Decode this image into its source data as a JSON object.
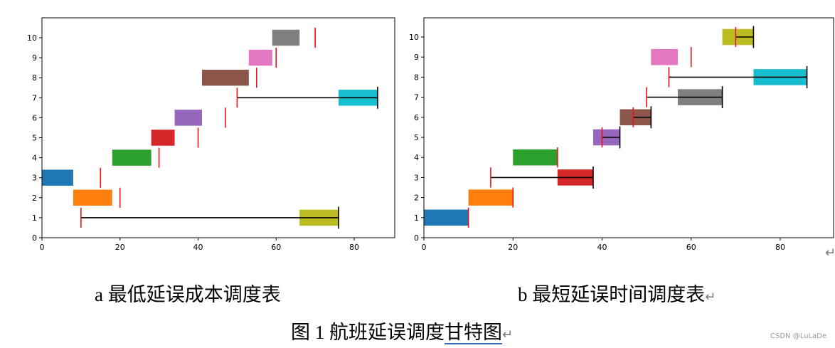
{
  "chart_data": [
    {
      "type": "gantt",
      "caption": "a 最低延误成本调度表",
      "xlim": [
        0,
        90
      ],
      "ylim": [
        0,
        11
      ],
      "x_ticks": [
        "0",
        "20",
        "40",
        "60",
        "80"
      ],
      "y_ticks": [
        "0",
        "1",
        "2",
        "3",
        "4",
        "5",
        "6",
        "7",
        "8",
        "9",
        "10"
      ],
      "bars": [
        {
          "flight": 1,
          "start": 66,
          "end": 76,
          "color": "#bcbd22"
        },
        {
          "flight": 2,
          "start": 8,
          "end": 18,
          "color": "#ff7f0e"
        },
        {
          "flight": 3,
          "start": 0,
          "end": 8,
          "color": "#1f77b4"
        },
        {
          "flight": 4,
          "start": 18,
          "end": 28,
          "color": "#2ca02c"
        },
        {
          "flight": 5,
          "start": 28,
          "end": 34,
          "color": "#d62728"
        },
        {
          "flight": 6,
          "start": 34,
          "end": 41,
          "color": "#9467bd"
        },
        {
          "flight": 7,
          "start": 76,
          "end": 86,
          "color": "#17becf"
        },
        {
          "flight": 8,
          "start": 41,
          "end": 53,
          "color": "#8c564b"
        },
        {
          "flight": 9,
          "start": 53,
          "end": 59,
          "color": "#e377c2"
        },
        {
          "flight": 10,
          "start": 59,
          "end": 66,
          "color": "#7f7f7f"
        }
      ],
      "deadlines": [
        {
          "flight": 1,
          "x": 10
        },
        {
          "flight": 2,
          "x": 20
        },
        {
          "flight": 3,
          "x": 15
        },
        {
          "flight": 4,
          "x": 30
        },
        {
          "flight": 5,
          "x": 40
        },
        {
          "flight": 6,
          "x": 47
        },
        {
          "flight": 7,
          "x": 50
        },
        {
          "flight": 8,
          "x": 55
        },
        {
          "flight": 9,
          "x": 60
        },
        {
          "flight": 10,
          "x": 70
        }
      ],
      "delays": [
        {
          "flight": 1,
          "from": 10,
          "to": 76
        },
        {
          "flight": 7,
          "from": 50,
          "to": 86
        }
      ]
    },
    {
      "type": "gantt",
      "caption": "b 最短延误时间调度表",
      "xlim": [
        0,
        92
      ],
      "ylim": [
        0,
        11
      ],
      "x_ticks": [
        "0",
        "20",
        "40",
        "60",
        "80"
      ],
      "y_ticks": [
        "0",
        "1",
        "2",
        "3",
        "4",
        "5",
        "6",
        "7",
        "8",
        "9",
        "10"
      ],
      "bars": [
        {
          "flight": 1,
          "start": 0,
          "end": 10,
          "color": "#1f77b4"
        },
        {
          "flight": 2,
          "start": 10,
          "end": 20,
          "color": "#ff7f0e"
        },
        {
          "flight": 3,
          "start": 30,
          "end": 38,
          "color": "#d62728"
        },
        {
          "flight": 4,
          "start": 20,
          "end": 30,
          "color": "#2ca02c"
        },
        {
          "flight": 5,
          "start": 38,
          "end": 44,
          "color": "#9467bd"
        },
        {
          "flight": 6,
          "start": 44,
          "end": 51,
          "color": "#8c564b"
        },
        {
          "flight": 7,
          "start": 57,
          "end": 67,
          "color": "#7f7f7f"
        },
        {
          "flight": 8,
          "start": 74,
          "end": 86,
          "color": "#17becf"
        },
        {
          "flight": 9,
          "start": 51,
          "end": 57,
          "color": "#e377c2"
        },
        {
          "flight": 10,
          "start": 67,
          "end": 74,
          "color": "#bcbd22"
        }
      ],
      "deadlines": [
        {
          "flight": 1,
          "x": 10
        },
        {
          "flight": 2,
          "x": 20
        },
        {
          "flight": 3,
          "x": 15
        },
        {
          "flight": 4,
          "x": 30
        },
        {
          "flight": 5,
          "x": 40
        },
        {
          "flight": 6,
          "x": 47
        },
        {
          "flight": 7,
          "x": 50
        },
        {
          "flight": 8,
          "x": 55
        },
        {
          "flight": 9,
          "x": 60
        },
        {
          "flight": 10,
          "x": 70
        }
      ],
      "delays": [
        {
          "flight": 3,
          "from": 15,
          "to": 38
        },
        {
          "flight": 5,
          "from": 40,
          "to": 44
        },
        {
          "flight": 6,
          "from": 47,
          "to": 51
        },
        {
          "flight": 7,
          "from": 50,
          "to": 67
        },
        {
          "flight": 8,
          "from": 55,
          "to": 86
        },
        {
          "flight": 10,
          "from": 70,
          "to": 74
        }
      ]
    }
  ],
  "captions": {
    "a": "a 最低延误成本调度表",
    "b": "b 最短延误时间调度表",
    "figure_pre": "图 1  航班延误调度",
    "figure_underlined": "甘特图",
    "return_mark": "↵"
  },
  "watermark": "CSDN @LuLaDe"
}
